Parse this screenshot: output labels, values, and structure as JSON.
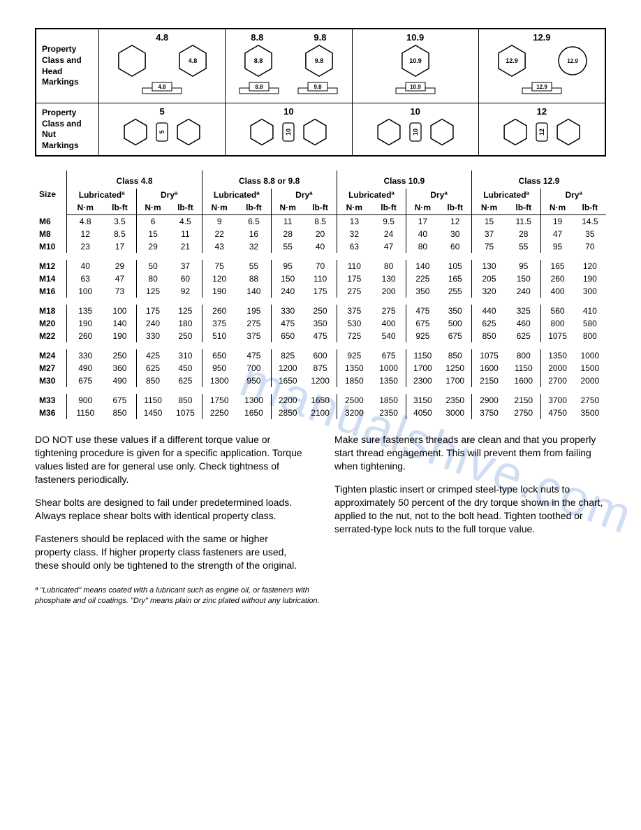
{
  "markings": {
    "head_label": "Property Class and Head Markings",
    "nut_label": "Property Class and Nut Markings",
    "head_classes": [
      "4.8",
      "8.8",
      "9.8",
      "10.9",
      "12.9"
    ],
    "nut_classes": [
      "5",
      "10",
      "10",
      "12"
    ]
  },
  "table": {
    "size_label": "Size",
    "classes": [
      "Class 4.8",
      "Class 8.8 or 9.8",
      "Class 10.9",
      "Class 12.9"
    ],
    "lube_label": "Lubricatedª",
    "dry_label": "Dryª",
    "unit_nm": "N·m",
    "unit_lbft": "lb-ft",
    "groups": [
      [
        {
          "size": "M6",
          "v": [
            4.8,
            3.5,
            6,
            4.5,
            9,
            6.5,
            11,
            8.5,
            13,
            9.5,
            17,
            12,
            15,
            11.5,
            19,
            14.5
          ]
        },
        {
          "size": "M8",
          "v": [
            12,
            8.5,
            15,
            11,
            22,
            16,
            28,
            20,
            32,
            24,
            40,
            30,
            37,
            28,
            47,
            35
          ]
        },
        {
          "size": "M10",
          "v": [
            23,
            17,
            29,
            21,
            43,
            32,
            55,
            40,
            63,
            47,
            80,
            60,
            75,
            55,
            95,
            70
          ]
        }
      ],
      [
        {
          "size": "M12",
          "v": [
            40,
            29,
            50,
            37,
            75,
            55,
            95,
            70,
            110,
            80,
            140,
            105,
            130,
            95,
            165,
            120
          ]
        },
        {
          "size": "M14",
          "v": [
            63,
            47,
            80,
            60,
            120,
            88,
            150,
            110,
            175,
            130,
            225,
            165,
            205,
            150,
            260,
            190
          ]
        },
        {
          "size": "M16",
          "v": [
            100,
            73,
            125,
            92,
            190,
            140,
            240,
            175,
            275,
            200,
            350,
            255,
            320,
            240,
            400,
            300
          ]
        }
      ],
      [
        {
          "size": "M18",
          "v": [
            135,
            100,
            175,
            125,
            260,
            195,
            330,
            250,
            375,
            275,
            475,
            350,
            440,
            325,
            560,
            410
          ]
        },
        {
          "size": "M20",
          "v": [
            190,
            140,
            240,
            180,
            375,
            275,
            475,
            350,
            530,
            400,
            675,
            500,
            625,
            460,
            800,
            580
          ]
        },
        {
          "size": "M22",
          "v": [
            260,
            190,
            330,
            250,
            510,
            375,
            650,
            475,
            725,
            540,
            925,
            675,
            850,
            625,
            1075,
            800
          ]
        }
      ],
      [
        {
          "size": "M24",
          "v": [
            330,
            250,
            425,
            310,
            650,
            475,
            825,
            600,
            925,
            675,
            1150,
            850,
            1075,
            800,
            1350,
            1000
          ]
        },
        {
          "size": "M27",
          "v": [
            490,
            360,
            625,
            450,
            950,
            700,
            1200,
            875,
            1350,
            1000,
            1700,
            1250,
            1600,
            1150,
            2000,
            1500
          ]
        },
        {
          "size": "M30",
          "v": [
            675,
            490,
            850,
            625,
            1300,
            950,
            1650,
            1200,
            1850,
            1350,
            2300,
            1700,
            2150,
            1600,
            2700,
            2000
          ]
        }
      ],
      [
        {
          "size": "M33",
          "v": [
            900,
            675,
            1150,
            850,
            1750,
            1300,
            2200,
            1650,
            2500,
            1850,
            3150,
            2350,
            2900,
            2150,
            3700,
            2750
          ]
        },
        {
          "size": "M36",
          "v": [
            1150,
            850,
            1450,
            1075,
            2250,
            1650,
            2850,
            2100,
            3200,
            2350,
            4050,
            3000,
            3750,
            2750,
            4750,
            3500
          ]
        }
      ]
    ]
  },
  "text": {
    "p1": "DO NOT use these values if a different torque value or tightening procedure is given for a specific application. Torque values listed are for general use only. Check tightness of fasteners periodically.",
    "p2": "Shear bolts are designed to fail under predetermined loads. Always replace shear bolts with identical property class.",
    "p3": "Fasteners should be replaced with the same or higher property class. If higher property class fasteners are used, these should only be tightened to the strength of the original.",
    "p4": "Make sure fasteners threads are clean and that you properly start thread engagement. This will prevent them from failing when tightening.",
    "p5": "Tighten plastic insert or crimped steel-type lock nuts to approximately 50 percent of the dry torque shown in the chart, applied to the nut, not to the bolt head. Tighten toothed or serrated-type lock nuts to the full torque value.",
    "footnote": "ª \"Lubricated\" means coated with a lubricant such as engine oil, or fasteners with phosphate and oil coatings. \"Dry\" means plain or zinc plated without any lubrication."
  },
  "watermark": "manualshive.com",
  "colors": {
    "watermark": "#5a8dd6",
    "border": "#000000",
    "text": "#000000",
    "background": "#ffffff"
  }
}
